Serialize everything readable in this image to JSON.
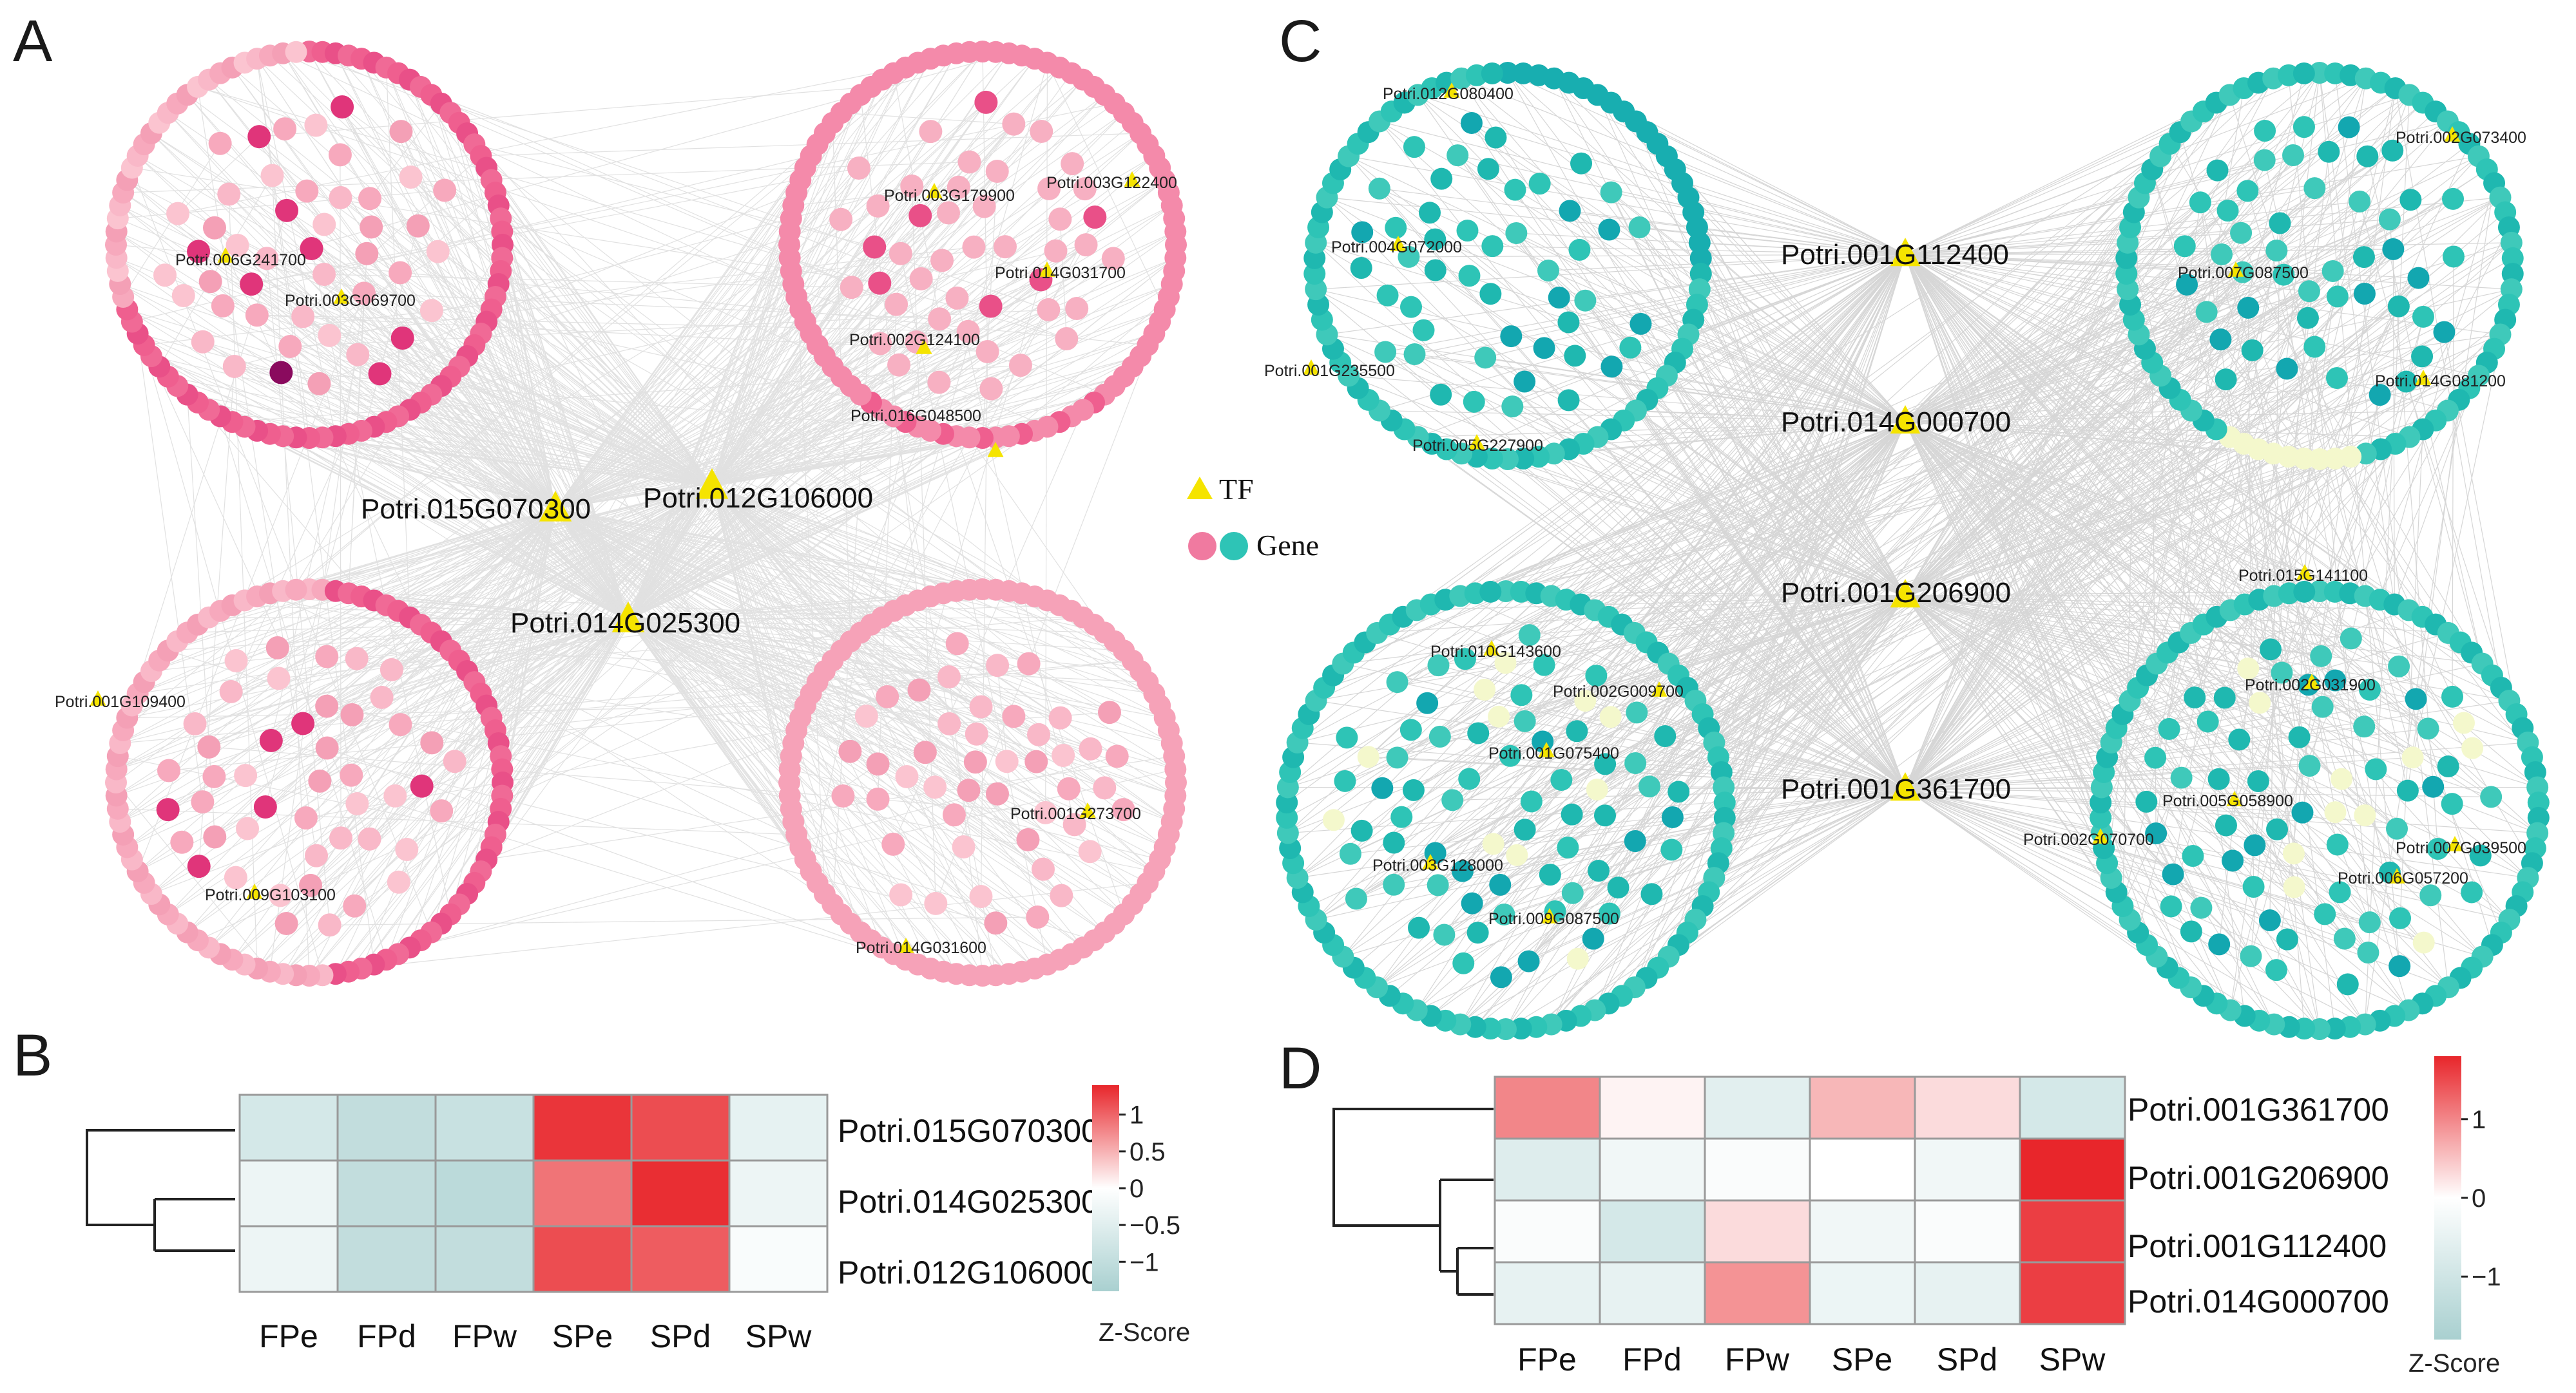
{
  "panels": {
    "a": "A",
    "b": "B",
    "c": "C",
    "d": "D"
  },
  "legend": {
    "tf": "TF",
    "gene": "Gene"
  },
  "network_a": {
    "hubs": [
      "Potri.015G070300",
      "Potri.012G106000",
      "Potri.014G025300"
    ],
    "node_labels": [
      "Potri.006G241700",
      "Potri.003G069700",
      "Potri.003G179900",
      "Potri.003G122400",
      "Potri.014G031700",
      "Potri.002G124100",
      "Potri.016G048500",
      "Potri.001G109400",
      "Potri.009G103100",
      "Potri.001G273700",
      "Potri.014G031600"
    ]
  },
  "network_c": {
    "hubs": [
      "Potri.001G112400",
      "Potri.014G000700",
      "Potri.001G206900",
      "Potri.001G361700"
    ],
    "node_labels": [
      "Potri.012G080400",
      "Potri.004G072000",
      "Potri.001G235500",
      "Potri.005G227900",
      "Potri.002G073400",
      "Potri.007G087500",
      "Potri.014G081200",
      "Potri.010G143600",
      "Potri.002G009700",
      "Potri.001G075400",
      "Potri.003G128000",
      "Potri.009G087500",
      "Potri.015G141100",
      "Potri.002G031900",
      "Potri.005G058900",
      "Potri.002G070700",
      "Potri.007G039500",
      "Potri.006G057200"
    ]
  },
  "colors": {
    "gene_pink": "#f07aa0",
    "gene_teal": "#2ec4b6",
    "tf_yellow": "#f5e400",
    "hm_high": "#e8262b",
    "hm_low": "#a9d0d0",
    "hm_mid": "#ffffff"
  },
  "chart_data": [
    {
      "type": "heatmap",
      "panel": "B",
      "columns": [
        "FPe",
        "FPd",
        "FPw",
        "SPe",
        "SPd",
        "SPw"
      ],
      "rows": [
        "Potri.015G070300",
        "Potri.014G025300",
        "Potri.012G106000"
      ],
      "values": [
        [
          -0.7,
          -1.0,
          -0.9,
          1.3,
          1.15,
          -0.4
        ],
        [
          -0.3,
          -1.0,
          -1.1,
          0.9,
          1.35,
          -0.3
        ],
        [
          -0.3,
          -1.0,
          -1.0,
          1.15,
          1.05,
          -0.1
        ]
      ],
      "scale": {
        "min": -1.4,
        "max": 1.4,
        "ticks": [
          1,
          0.5,
          0,
          -0.5,
          -1
        ],
        "tick_labels": [
          "1",
          "0.5",
          "0",
          "−0.5",
          "−1"
        ]
      },
      "legend_title": "Z-Score"
    },
    {
      "type": "heatmap",
      "panel": "D",
      "columns": [
        "FPe",
        "FPd",
        "FPw",
        "SPe",
        "SPd",
        "SPw"
      ],
      "rows": [
        "Potri.001G361700",
        "Potri.001G206900",
        "Potri.001G112400",
        "Potri.014G000700"
      ],
      "values": [
        [
          1.0,
          0.1,
          -0.6,
          0.6,
          0.3,
          -0.9
        ],
        [
          -0.7,
          -0.3,
          -0.1,
          0.0,
          -0.3,
          1.8
        ],
        [
          -0.1,
          -0.9,
          0.3,
          -0.3,
          -0.1,
          1.6
        ],
        [
          -0.5,
          -0.5,
          0.9,
          -0.4,
          -0.5,
          1.6
        ]
      ],
      "scale": {
        "min": -1.8,
        "max": 1.8,
        "ticks": [
          1,
          0,
          -1
        ],
        "tick_labels": [
          "1",
          "0",
          "−1"
        ]
      },
      "legend_title": "Z-Score"
    }
  ]
}
